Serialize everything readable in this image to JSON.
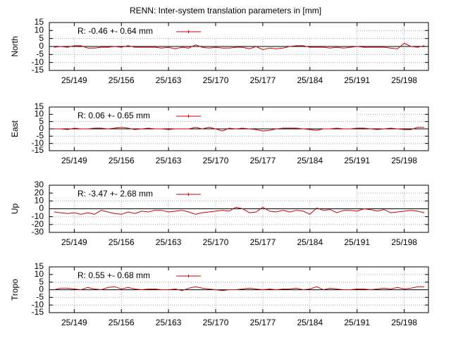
{
  "title": "RENN: Inter-system translation parameters in [mm]",
  "chart_data": [
    {
      "type": "line",
      "ylabel": "North",
      "xlim": [
        145.3,
        201.6
      ],
      "ylim": [
        -15,
        15
      ],
      "yticks": [
        15,
        10,
        5,
        0,
        -5,
        -10,
        -15
      ],
      "xticks": [
        {
          "value": 149,
          "label": "25/149"
        },
        {
          "value": 156,
          "label": "25/156"
        },
        {
          "value": 163,
          "label": "25/163"
        },
        {
          "value": 170,
          "label": "25/170"
        },
        {
          "value": 177,
          "label": "25/177"
        },
        {
          "value": 184,
          "label": "25/184"
        },
        {
          "value": 191,
          "label": "25/191"
        },
        {
          "value": 198,
          "label": "25/198"
        }
      ],
      "grid": true,
      "x": [
        146,
        147,
        148,
        149,
        150,
        151,
        152,
        153,
        154,
        155,
        156,
        157,
        158,
        159,
        160,
        161,
        162,
        163,
        164,
        165,
        166,
        167,
        168,
        169,
        170,
        171,
        172,
        173,
        174,
        175,
        176,
        177,
        178,
        179,
        180,
        181,
        182,
        183,
        184,
        185,
        186,
        187,
        188,
        189,
        190,
        191,
        192,
        193,
        194,
        195,
        196,
        197,
        198,
        199,
        200,
        201
      ],
      "series": [
        {
          "name": "R:  -0.46 +- 0.64 mm",
          "color": "#cc0000",
          "values": [
            -0.5,
            0,
            -0.5,
            0.5,
            0.5,
            -1,
            -1,
            -0.5,
            -0.5,
            0,
            -0.5,
            0.5,
            -0.5,
            -0.5,
            -0.5,
            -0.5,
            -1,
            -0.5,
            -1.5,
            -0.5,
            -1,
            1,
            -0.5,
            -1,
            -0.5,
            -1,
            -1,
            -0.5,
            -0.5,
            -1.5,
            0,
            -2,
            -1,
            -1.5,
            -1,
            0,
            0.5,
            0.5,
            -0.5,
            -0.5,
            -0.5,
            -1,
            -0.5,
            -1,
            -0.5,
            0,
            -0.5,
            -0.5,
            -0.5,
            -0.5,
            -1,
            -1.5,
            2,
            0,
            -0.5,
            0.5
          ]
        }
      ]
    },
    {
      "type": "line",
      "ylabel": "East",
      "xlim": [
        145.3,
        201.6
      ],
      "ylim": [
        -15,
        15
      ],
      "yticks": [
        15,
        10,
        5,
        0,
        -5,
        -10,
        -15
      ],
      "xticks": [
        {
          "value": 149,
          "label": "25/149"
        },
        {
          "value": 156,
          "label": "25/156"
        },
        {
          "value": 163,
          "label": "25/163"
        },
        {
          "value": 170,
          "label": "25/170"
        },
        {
          "value": 177,
          "label": "25/177"
        },
        {
          "value": 184,
          "label": "25/184"
        },
        {
          "value": 191,
          "label": "25/191"
        },
        {
          "value": 198,
          "label": "25/198"
        }
      ],
      "grid": true,
      "x": [
        146,
        147,
        148,
        149,
        150,
        151,
        152,
        153,
        154,
        155,
        156,
        157,
        158,
        159,
        160,
        161,
        162,
        163,
        164,
        165,
        166,
        167,
        168,
        169,
        170,
        171,
        172,
        173,
        174,
        175,
        176,
        177,
        178,
        179,
        180,
        181,
        182,
        183,
        184,
        185,
        186,
        187,
        188,
        189,
        190,
        191,
        192,
        193,
        194,
        195,
        196,
        197,
        198,
        199,
        200,
        201
      ],
      "series": [
        {
          "name": "R:   0.06 +- 0.65 mm",
          "color": "#cc0000",
          "values": [
            0,
            0,
            -0.5,
            0.5,
            0,
            0,
            0.5,
            0.5,
            0,
            0.5,
            1,
            0.5,
            -0.5,
            0,
            0.5,
            0,
            0,
            -0.5,
            0,
            0,
            0,
            1,
            0,
            1,
            0,
            -1.5,
            0.5,
            0,
            0.5,
            0,
            -0.5,
            -1.5,
            -1,
            0,
            0.5,
            0.5,
            0.5,
            0,
            -0.5,
            -1,
            0,
            0,
            0.5,
            0,
            0,
            0.5,
            0.5,
            0,
            -0.5,
            0,
            0.5,
            0,
            -0.5,
            -0.5,
            1,
            1
          ]
        }
      ]
    },
    {
      "type": "line",
      "ylabel": "Up",
      "xlim": [
        145.3,
        201.6
      ],
      "ylim": [
        -30,
        30
      ],
      "yticks": [
        30,
        20,
        10,
        0,
        -10,
        -20,
        -30
      ],
      "xticks": [
        {
          "value": 149,
          "label": "25/149"
        },
        {
          "value": 156,
          "label": "25/156"
        },
        {
          "value": 163,
          "label": "25/163"
        },
        {
          "value": 170,
          "label": "25/170"
        },
        {
          "value": 177,
          "label": "25/177"
        },
        {
          "value": 184,
          "label": "25/184"
        },
        {
          "value": 191,
          "label": "25/191"
        },
        {
          "value": 198,
          "label": "25/198"
        }
      ],
      "grid": true,
      "x": [
        146,
        147,
        148,
        149,
        150,
        151,
        152,
        153,
        154,
        155,
        156,
        157,
        158,
        159,
        160,
        161,
        162,
        163,
        164,
        165,
        166,
        167,
        168,
        169,
        170,
        171,
        172,
        173,
        174,
        175,
        176,
        177,
        178,
        179,
        180,
        181,
        182,
        183,
        184,
        185,
        186,
        187,
        188,
        189,
        190,
        191,
        192,
        193,
        194,
        195,
        196,
        197,
        198,
        199,
        200,
        201
      ],
      "series": [
        {
          "name": "R:  -3.47 +- 2.68 mm",
          "color": "#cc0000",
          "values": [
            -4,
            -5,
            -6,
            -5,
            -7,
            -5,
            -7,
            -2,
            -4,
            -6,
            -7,
            -4,
            -6,
            -3,
            -4,
            -2,
            -2,
            -4,
            -3,
            -2,
            -4,
            -7,
            -5,
            -4,
            -3,
            -2,
            -3,
            2,
            0,
            -5,
            -4,
            2,
            -3,
            -4,
            -2,
            -4,
            -2,
            -3,
            -7,
            1,
            -2,
            -1,
            -5,
            -2,
            -2,
            -3,
            0,
            -1,
            -3,
            -1,
            -5,
            -4,
            -3,
            -2,
            -3,
            -5
          ]
        }
      ]
    },
    {
      "type": "line",
      "ylabel": "Tropo",
      "xlim": [
        145.3,
        201.6
      ],
      "ylim": [
        -15,
        15
      ],
      "yticks": [
        15,
        10,
        5,
        0,
        -5,
        -10,
        -15
      ],
      "xticks": [
        {
          "value": 149,
          "label": "25/149"
        },
        {
          "value": 156,
          "label": "25/156"
        },
        {
          "value": 163,
          "label": "25/163"
        },
        {
          "value": 170,
          "label": "25/170"
        },
        {
          "value": 177,
          "label": "25/177"
        },
        {
          "value": 184,
          "label": "25/184"
        },
        {
          "value": 191,
          "label": "25/191"
        },
        {
          "value": 198,
          "label": "25/198"
        }
      ],
      "grid": true,
      "x": [
        146,
        147,
        148,
        149,
        150,
        151,
        152,
        153,
        154,
        155,
        156,
        157,
        158,
        159,
        160,
        161,
        162,
        163,
        164,
        165,
        166,
        167,
        168,
        169,
        170,
        171,
        172,
        173,
        174,
        175,
        176,
        177,
        178,
        179,
        180,
        181,
        182,
        183,
        184,
        185,
        186,
        187,
        188,
        189,
        190,
        191,
        192,
        193,
        194,
        195,
        196,
        197,
        198,
        199,
        200,
        201
      ],
      "series": [
        {
          "name": "R:   0.55 +- 0.68 mm",
          "color": "#cc0000",
          "values": [
            0,
            1,
            1,
            0.5,
            0,
            1.5,
            0.5,
            0,
            1.5,
            2,
            0.5,
            1.5,
            0.5,
            0,
            0.5,
            0.5,
            0,
            0,
            0.5,
            -0.5,
            1,
            2,
            1,
            0.5,
            0,
            -0.5,
            0,
            0,
            0.5,
            1,
            0.5,
            0,
            0.5,
            0,
            0.5,
            0.5,
            1,
            0,
            0.5,
            2,
            0,
            1,
            0.5,
            0,
            0,
            0.5,
            0.5,
            0,
            0.5,
            1,
            0.5,
            1.5,
            0.5,
            1,
            2,
            2
          ]
        }
      ]
    }
  ]
}
